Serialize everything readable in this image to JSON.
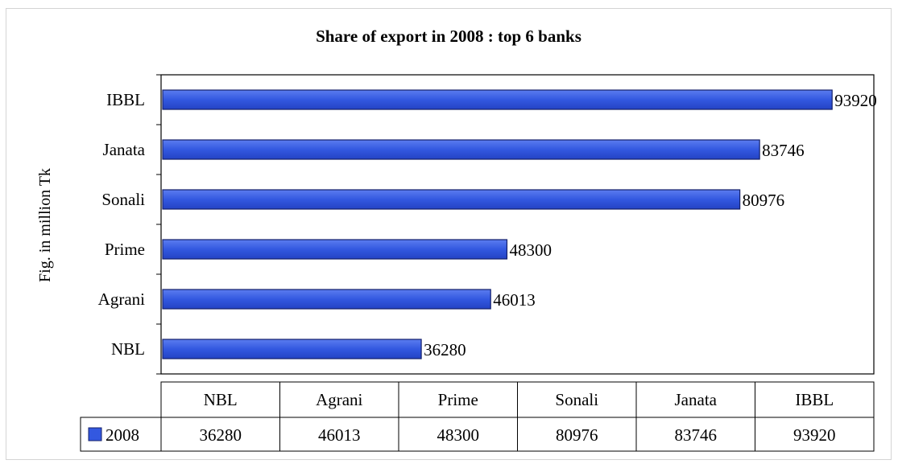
{
  "chart_data": {
    "type": "bar",
    "orientation": "horizontal",
    "title": "Share of export in 2008 : top 6 banks",
    "ylabel": "Fig. in million Tk",
    "categories": [
      "NBL",
      "Agrani",
      "Prime",
      "Sonali",
      "Janata",
      "IBBL"
    ],
    "series": [
      {
        "name": "2008",
        "values": [
          36280,
          46013,
          48300,
          80976,
          83746,
          93920
        ]
      }
    ],
    "xlim": [
      0,
      100000
    ],
    "grid": false,
    "bar_color": "#3358e0",
    "data_table": true
  }
}
